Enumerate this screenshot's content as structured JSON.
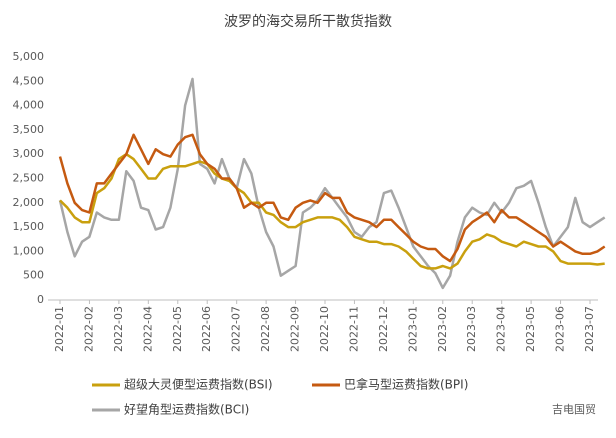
{
  "chart_data": {
    "type": "line",
    "title": "波罗的海交易所干散货指数",
    "categories": [
      "2022-01",
      null,
      null,
      null,
      "2022-02",
      null,
      null,
      null,
      "2022-03",
      null,
      null,
      null,
      "2022-04",
      null,
      null,
      null,
      "2022-05",
      null,
      null,
      null,
      "2022-06",
      null,
      null,
      null,
      "2022-07",
      null,
      null,
      null,
      "2022-08",
      null,
      null,
      null,
      "2022-09",
      null,
      null,
      null,
      "2022-10",
      null,
      null,
      null,
      "2022-11",
      null,
      null,
      null,
      "2022-12",
      null,
      null,
      null,
      "2023-01",
      null,
      null,
      null,
      "2023-02",
      null,
      null,
      null,
      "2023-03",
      null,
      null,
      null,
      "2023-04",
      null,
      null,
      null,
      "2023-05",
      null,
      null,
      null,
      "2023-06",
      null,
      null,
      null,
      "2023-07",
      null,
      null
    ],
    "series": [
      {
        "name": "超级大灵便型运费指数(BSI)",
        "color": "#c9a00e",
        "values": [
          2050,
          1900,
          1700,
          1600,
          1600,
          2200,
          2300,
          2500,
          2900,
          3000,
          2900,
          2700,
          2500,
          2500,
          2700,
          2750,
          2750,
          2750,
          2800,
          2850,
          2800,
          2600,
          2500,
          2450,
          2300,
          2200,
          2000,
          2000,
          1800,
          1750,
          1600,
          1500,
          1500,
          1600,
          1650,
          1700,
          1700,
          1700,
          1650,
          1500,
          1300,
          1250,
          1200,
          1200,
          1150,
          1150,
          1100,
          1000,
          850,
          700,
          650,
          650,
          700,
          650,
          750,
          1000,
          1200,
          1250,
          1350,
          1300,
          1200,
          1150,
          1100,
          1200,
          1150,
          1100,
          1100,
          1000,
          800,
          750,
          750,
          750,
          750,
          730,
          750
        ]
      },
      {
        "name": "巴拿马型运费指数(BPI)",
        "color": "#c55a11",
        "values": [
          2950,
          2400,
          2000,
          1850,
          1800,
          2400,
          2400,
          2600,
          2800,
          3000,
          3400,
          3100,
          2800,
          3100,
          3000,
          2950,
          3200,
          3350,
          3400,
          3000,
          2800,
          2700,
          2500,
          2500,
          2300,
          1900,
          2000,
          1900,
          2000,
          2000,
          1700,
          1650,
          1900,
          2000,
          2050,
          2000,
          2200,
          2100,
          2100,
          1800,
          1700,
          1650,
          1600,
          1500,
          1650,
          1650,
          1500,
          1350,
          1200,
          1100,
          1050,
          1050,
          900,
          800,
          1050,
          1450,
          1600,
          1700,
          1800,
          1600,
          1850,
          1700,
          1700,
          1600,
          1500,
          1400,
          1300,
          1100,
          1200,
          1100,
          1000,
          950,
          950,
          1000,
          1100
        ]
      },
      {
        "name": "好望角型运费指数(BCI)",
        "color": "#a6a6a6",
        "values": [
          2050,
          1400,
          900,
          1200,
          1300,
          1800,
          1700,
          1650,
          1650,
          2650,
          2450,
          1900,
          1850,
          1450,
          1500,
          1900,
          2700,
          4000,
          4550,
          2800,
          2700,
          2400,
          2900,
          2500,
          2300,
          2900,
          2600,
          1900,
          1400,
          1100,
          500,
          600,
          700,
          1800,
          1900,
          2050,
          2300,
          2100,
          1900,
          1700,
          1400,
          1300,
          1500,
          1600,
          2200,
          2250,
          1900,
          1500,
          1100,
          900,
          700,
          550,
          250,
          500,
          1200,
          1700,
          1900,
          1800,
          1750,
          2000,
          1800,
          2000,
          2300,
          2350,
          2450,
          2000,
          1500,
          1100,
          1300,
          1500,
          2100,
          1600,
          1500,
          1600,
          1700
        ]
      }
    ],
    "ylim": [
      0,
      5000
    ],
    "yticks": [
      0,
      500,
      {
        "value": 1000,
        "label": "1,000"
      },
      {
        "value": 1500,
        "label": "1,500"
      },
      {
        "value": 2000,
        "label": "2,000"
      },
      {
        "value": 2500,
        "label": "2,500"
      },
      {
        "value": 3000,
        "label": "3,000"
      },
      {
        "value": 3500,
        "label": "3,500"
      },
      {
        "value": 4000,
        "label": "4,000"
      },
      {
        "value": 4500,
        "label": "4,500"
      },
      {
        "value": 5000,
        "label": "5,000"
      }
    ],
    "grid": false,
    "legend": "bottom",
    "watermark": "吉电国贸"
  }
}
